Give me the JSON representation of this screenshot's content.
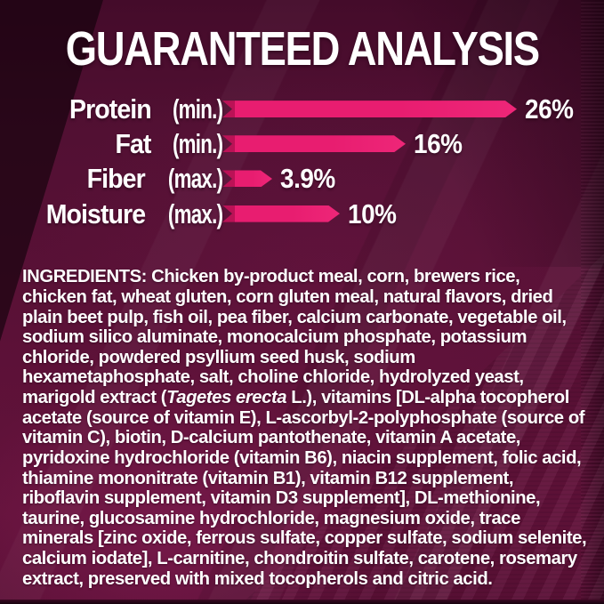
{
  "header": {
    "title": "GUARANTEED ANALYSIS"
  },
  "chart_data": {
    "type": "bar",
    "orientation": "horizontal",
    "title": "GUARANTEED ANALYSIS",
    "categories": [
      "Protein (min.)",
      "Fat (min.)",
      "Fiber (max.)",
      "Moisture (max.)"
    ],
    "values": [
      26,
      16,
      3.9,
      10
    ],
    "value_labels": [
      "26%",
      "16%",
      "3.9%",
      "10%"
    ],
    "xlabel": "",
    "ylabel": "",
    "xlim": [
      0,
      30
    ],
    "grid": false,
    "legend": false,
    "bar_color": "#e81d70",
    "background_color": "#5b1137",
    "text_color": "#ffffff"
  },
  "analysis": {
    "rows": [
      {
        "name": "Protein",
        "qualifier": "(min.)",
        "value": 26,
        "value_label": "26%"
      },
      {
        "name": "Fat",
        "qualifier": "(min.)",
        "value": 16,
        "value_label": "16%"
      },
      {
        "name": "Fiber",
        "qualifier": "(max.)",
        "value": 3.9,
        "value_label": "3.9%"
      },
      {
        "name": "Moisture",
        "qualifier": "(max.)",
        "value": 10,
        "value_label": "10%"
      }
    ]
  },
  "ingredients": {
    "label": "INGREDIENTS:",
    "text_before_italic": " Chicken by-product meal, corn, brewers rice, chicken fat, wheat gluten, corn gluten meal, natural flavors, dried plain beet pulp, fish oil, pea fiber, calcium carbonate, vegetable oil, sodium silico aluminate, monocalcium phosphate, potassium chloride, powdered psyllium seed husk, sodium hexametaphosphate, salt, choline chloride, hydrolyzed yeast, marigold extract (",
    "italic": "Tagetes erecta",
    "text_after_italic": " L.), vitamins [DL-alpha tocopherol acetate (source of vitamin E), L-ascorbyl-2-polyphosphate (source of vitamin C), biotin, D-calcium pantothenate, vitamin A acetate, pyridoxine hydrochloride (vitamin B6), niacin supplement, folic acid, thiamine mononitrate (vitamin B1), vitamin B12 supplement, riboflavin supplement, vitamin D3 supplement], DL-methionine, taurine, glucosamine hydrochloride, magnesium oxide, trace minerals [zinc oxide, ferrous sulfate, copper sulfate, sodium selenite, calcium iodate], L-carnitine, chondroitin sulfate, carotene, rosemary extract, preserved with mixed tocopherols and citric acid."
  },
  "colors": {
    "accent_pink": "#e81d70",
    "background_maroon": "#5b1137",
    "text": "#ffffff"
  }
}
